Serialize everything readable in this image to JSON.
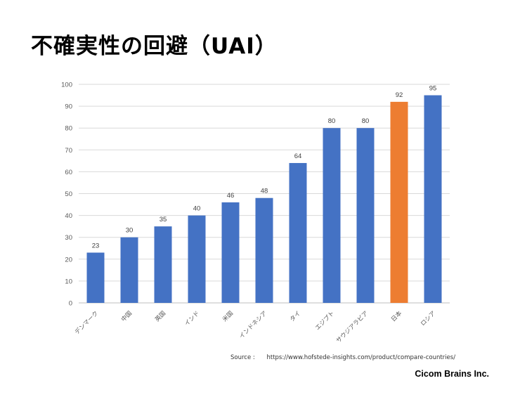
{
  "title": "不確実性の回避（UAI）",
  "source_label": "Source :",
  "source_url": "https://www.hofstede-insights.com/product/compare-countries/",
  "brand": "Cicom Brains Inc.",
  "colors": {
    "bar": "#4472c4",
    "highlight": "#ed7d31",
    "grid": "#d9d9d9",
    "text": "#595959"
  },
  "chart_data": {
    "type": "bar",
    "categories": [
      "デンマーク",
      "中国",
      "英国",
      "インド",
      "米国",
      "インドネシア",
      "タイ",
      "エジプト",
      "サウジアラビア",
      "日本",
      "ロシア"
    ],
    "values": [
      23,
      30,
      35,
      40,
      46,
      48,
      64,
      80,
      80,
      92,
      95
    ],
    "highlight_category": "日本",
    "ylim": [
      0,
      100
    ],
    "yticks": [
      0,
      10,
      20,
      30,
      40,
      50,
      60,
      70,
      80,
      90,
      100
    ],
    "grid": true,
    "data_labels": true,
    "title": "",
    "xlabel": "",
    "ylabel": ""
  }
}
